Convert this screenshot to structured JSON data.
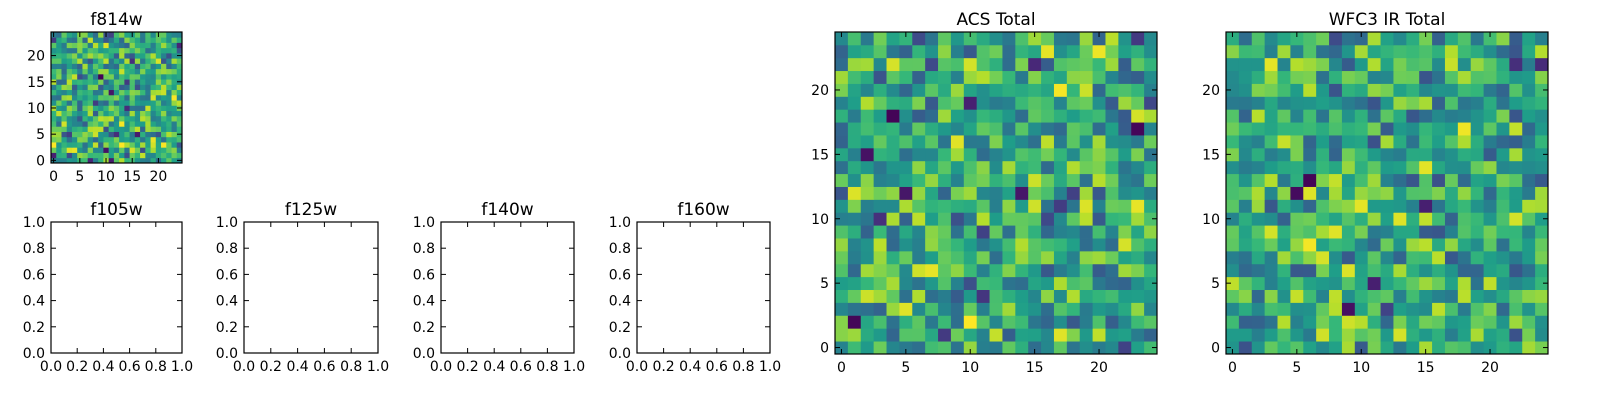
{
  "chart_data": [
    {
      "type": "heatmap",
      "title": "f814w",
      "grid_size": 25,
      "xlim": [
        -0.5,
        24.5
      ],
      "ylim": [
        -0.5,
        24.5
      ],
      "xticks": [
        0,
        5,
        10,
        15,
        20
      ],
      "yticks": [
        0,
        5,
        10,
        15,
        20
      ],
      "colormap": "viridis",
      "seed": 11,
      "values_note": "random noise image, values drawn from generator"
    },
    {
      "type": "heatmap",
      "title": "f105w",
      "empty": true,
      "xlim": [
        0,
        1
      ],
      "ylim": [
        0,
        1
      ],
      "xticks": [
        "0.0",
        "0.2",
        "0.4",
        "0.6",
        "0.8",
        "1.0"
      ],
      "yticks": [
        "0.0",
        "0.2",
        "0.4",
        "0.6",
        "0.8",
        "1.0"
      ]
    },
    {
      "type": "heatmap",
      "title": "f125w",
      "empty": true,
      "xlim": [
        0,
        1
      ],
      "ylim": [
        0,
        1
      ],
      "xticks": [
        "0.0",
        "0.2",
        "0.4",
        "0.6",
        "0.8",
        "1.0"
      ],
      "yticks": [
        "0.0",
        "0.2",
        "0.4",
        "0.6",
        "0.8",
        "1.0"
      ]
    },
    {
      "type": "heatmap",
      "title": "f140w",
      "empty": true,
      "xlim": [
        0,
        1
      ],
      "ylim": [
        0,
        1
      ],
      "xticks": [
        "0.0",
        "0.2",
        "0.4",
        "0.6",
        "0.8",
        "1.0"
      ],
      "yticks": [
        "0.0",
        "0.2",
        "0.4",
        "0.6",
        "0.8",
        "1.0"
      ]
    },
    {
      "type": "heatmap",
      "title": "f160w",
      "empty": true,
      "xlim": [
        0,
        1
      ],
      "ylim": [
        0,
        1
      ],
      "xticks": [
        "0.0",
        "0.2",
        "0.4",
        "0.6",
        "0.8",
        "1.0"
      ],
      "yticks": [
        "0.0",
        "0.2",
        "0.4",
        "0.6",
        "0.8",
        "1.0"
      ]
    },
    {
      "type": "heatmap",
      "title": "ACS Total",
      "grid_size": 25,
      "xlim": [
        -0.5,
        24.5
      ],
      "ylim": [
        -0.5,
        24.5
      ],
      "xticks": [
        0,
        5,
        10,
        15,
        20
      ],
      "yticks": [
        0,
        5,
        10,
        15,
        20
      ],
      "colormap": "viridis",
      "seed": 23,
      "values_note": "noise image biased toward green/yellow"
    },
    {
      "type": "heatmap",
      "title": "WFC3 IR Total",
      "grid_size": 25,
      "xlim": [
        -0.5,
        24.5
      ],
      "ylim": [
        -0.5,
        24.5
      ],
      "xticks": [
        0,
        5,
        10,
        15,
        20
      ],
      "yticks": [
        0,
        5,
        10,
        15,
        20
      ],
      "colormap": "viridis",
      "seed": 37,
      "values_note": "noise image biased toward green/yellow"
    }
  ]
}
